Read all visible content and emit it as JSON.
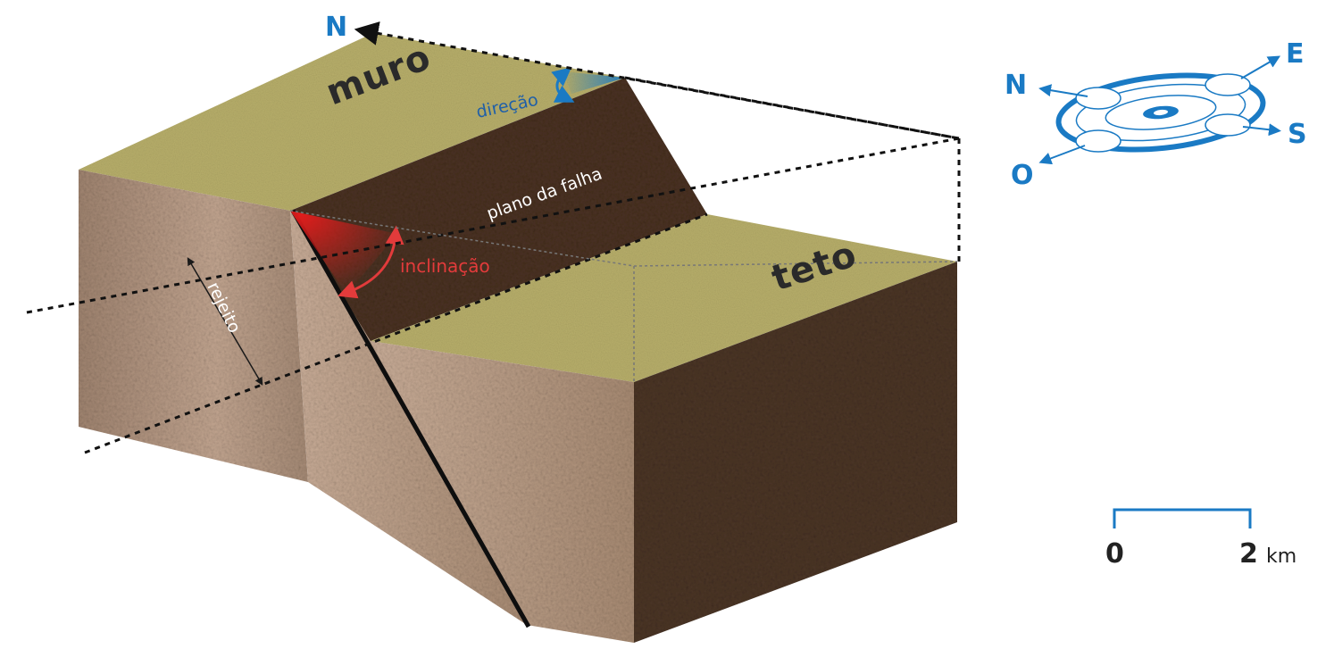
{
  "diagram": {
    "north_label": "N",
    "labels": {
      "muro": "muro",
      "teto": "teto",
      "direcao": "direção",
      "plano": "plano da falha",
      "inclinacao": "inclinação",
      "rejeito": "rejeito"
    },
    "colors": {
      "surface": "#b7ae6a",
      "side_light": "#9c8068",
      "side_light2": "#c7a994",
      "fault_plane": "#4a3222",
      "teto_front": "#4b3526",
      "accent_blue": "#1a7ac4",
      "accent_red": "#e02020"
    }
  },
  "compass": {
    "N": "N",
    "E": "E",
    "S": "S",
    "O": "O"
  },
  "scale": {
    "start": "0",
    "end": "2",
    "unit": "km"
  }
}
